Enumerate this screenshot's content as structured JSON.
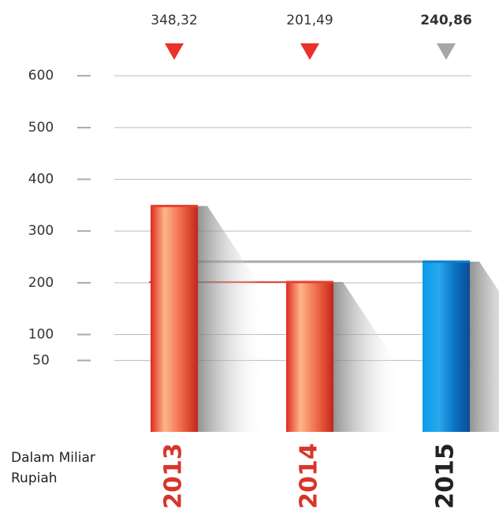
{
  "chart_data": {
    "type": "bar",
    "note": "Dalam Miliar Rupiah",
    "categories": [
      "2013",
      "2014",
      "2015"
    ],
    "values": [
      348.32,
      201.49,
      240.86
    ],
    "value_labels": [
      "348,32",
      "201,49",
      "240,86"
    ],
    "colors": [
      "#e8412c",
      "#e8412c",
      "#0a7fcf"
    ],
    "marker_colors": [
      "#e8322a",
      "#e8322a",
      "#a6a6a6"
    ],
    "category_colors": [
      "#d8352a",
      "#d8352a",
      "#222222"
    ],
    "ylim": [
      -88,
      620
    ],
    "yticks": [
      50,
      100,
      200,
      300,
      400,
      500,
      600
    ],
    "grid": true
  }
}
